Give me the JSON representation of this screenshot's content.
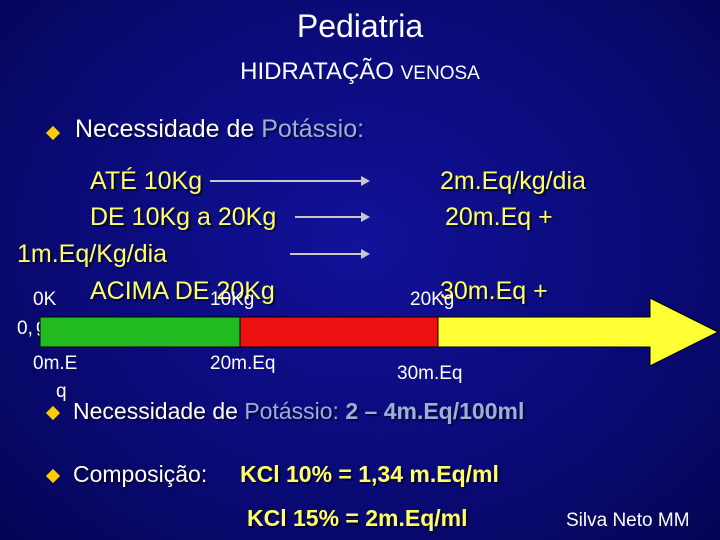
{
  "header": {
    "title": "Pediatria",
    "subtitle_main": "HIDRATAÇÃO ",
    "subtitle_small": "VENOSA"
  },
  "bullet1": {
    "label": "Necessidade de ",
    "label_highlight": "Potássio:"
  },
  "rules": {
    "row1_left": "ATÉ 10Kg",
    "row1_right": "2m.Eq/kg/dia",
    "row2_left": "DE 10Kg a 20Kg",
    "row2_right": "20m.Eq +",
    "row3_left": "1m.Eq/Kg/dia",
    "row4_left": "ACIMA DE 20Kg",
    "row4_right": "30m.Eq  +"
  },
  "scale": {
    "start_weight_a": "0K",
    "start_weight_b": "0,",
    "start_weight_c": "g",
    "mid_weight": "10Kg",
    "end_weight": "20Kg",
    "start_meq_a": "0m.E",
    "start_meq_b": "q",
    "mid_meq": "20m.Eq",
    "end_meq": "30m.Eq",
    "segments": [
      {
        "color": "#22bb22"
      },
      {
        "color": "#ee1111"
      },
      {
        "color": "#ffff33"
      }
    ]
  },
  "bullet2": {
    "label": "Necessidade de ",
    "label_highlight": "Potássio:",
    "value": " 2 – 4m.Eq/100ml"
  },
  "bullet3": {
    "label": "Composição: ",
    "value_line1": "KCl 10% = 1,34 m.Eq/ml",
    "value_line2": "KCl 15% =  2m.Eq/ml"
  },
  "footer": {
    "author": "Silva Neto MM"
  }
}
